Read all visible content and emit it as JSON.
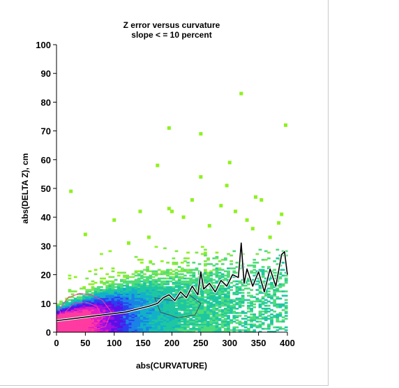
{
  "chart_data": {
    "type": "heatmap",
    "title": "Z error versus curvature",
    "subtitle": "slope < = 10 percent",
    "xlabel": "abs(CURVATURE)",
    "ylabel": "abs(DELTA Z), cm",
    "xlim": [
      0,
      400
    ],
    "ylim": [
      0,
      100
    ],
    "xticks": [
      0,
      50,
      100,
      150,
      200,
      250,
      300,
      350,
      400
    ],
    "yticks": [
      0,
      10,
      20,
      30,
      40,
      50,
      60,
      70,
      80,
      90,
      100
    ],
    "grid": false,
    "colormap": [
      "#8ef11f",
      "#7de84a",
      "#4fdc7a",
      "#1fc7a0",
      "#12b1c9",
      "#1b82e6",
      "#2b3ff0",
      "#5b10e8",
      "#a010e0",
      "#e01cc4",
      "#ff3aa0"
    ],
    "series": [
      {
        "style": "line",
        "color": "#000000",
        "x": [
          0,
          20,
          40,
          60,
          80,
          100,
          120,
          140,
          160,
          175,
          185,
          195,
          205,
          215,
          225,
          235,
          245,
          250,
          255,
          265,
          275,
          285,
          295,
          305,
          315,
          320,
          325,
          330,
          340,
          350,
          360,
          370,
          380,
          390,
          395,
          400
        ],
        "y": [
          4,
          4.5,
          5,
          5.5,
          6,
          6.5,
          7,
          8,
          9,
          10,
          12,
          13,
          11,
          14,
          12,
          16,
          13,
          21,
          15,
          17,
          14,
          18,
          16,
          20,
          19,
          31,
          17,
          22,
          16,
          21,
          14,
          22,
          16,
          27,
          28,
          20
        ]
      }
    ],
    "isolines": [
      {
        "color": "#ff3aa0",
        "x": [
          5,
          20,
          40,
          60,
          80,
          95,
          85,
          60,
          35,
          15,
          5
        ],
        "y": [
          8,
          12,
          13.5,
          13,
          11,
          7,
          2,
          0.6,
          0.5,
          2,
          8
        ]
      },
      {
        "color": "#ff3aa0",
        "x": [
          15,
          30,
          50,
          70,
          80,
          65,
          40,
          20,
          15
        ],
        "y": [
          7,
          10,
          10.5,
          9,
          5,
          2,
          1.5,
          3,
          7
        ]
      },
      {
        "color": "#ff3aa0",
        "x": [
          25,
          40,
          55,
          65,
          55,
          35,
          25
        ],
        "y": [
          6,
          7.5,
          7,
          4,
          2,
          2.5,
          6
        ]
      },
      {
        "color": "#4d4d4d",
        "x": [
          170,
          200,
          230,
          250,
          240,
          210,
          180,
          170
        ],
        "y": [
          12,
          11,
          13,
          10,
          6,
          5,
          7,
          12
        ]
      }
    ],
    "outliers": [
      {
        "x": 25,
        "y": 49
      },
      {
        "x": 100,
        "y": 39
      },
      {
        "x": 145,
        "y": 42
      },
      {
        "x": 175,
        "y": 58
      },
      {
        "x": 195,
        "y": 71
      },
      {
        "x": 250,
        "y": 69
      },
      {
        "x": 320,
        "y": 83
      },
      {
        "x": 397,
        "y": 72
      },
      {
        "x": 250,
        "y": 54
      },
      {
        "x": 295,
        "y": 51
      },
      {
        "x": 300,
        "y": 59
      },
      {
        "x": 355,
        "y": 46
      },
      {
        "x": 195,
        "y": 43
      },
      {
        "x": 200,
        "y": 42
      },
      {
        "x": 235,
        "y": 46
      },
      {
        "x": 285,
        "y": 44
      },
      {
        "x": 345,
        "y": 47
      },
      {
        "x": 390,
        "y": 41
      },
      {
        "x": 385,
        "y": 38
      },
      {
        "x": 330,
        "y": 39
      },
      {
        "x": 310,
        "y": 42
      },
      {
        "x": 220,
        "y": 40
      },
      {
        "x": 265,
        "y": 37
      },
      {
        "x": 50,
        "y": 34
      },
      {
        "x": 125,
        "y": 31
      },
      {
        "x": 160,
        "y": 33
      },
      {
        "x": 340,
        "y": 36
      },
      {
        "x": 370,
        "y": 33
      }
    ]
  }
}
